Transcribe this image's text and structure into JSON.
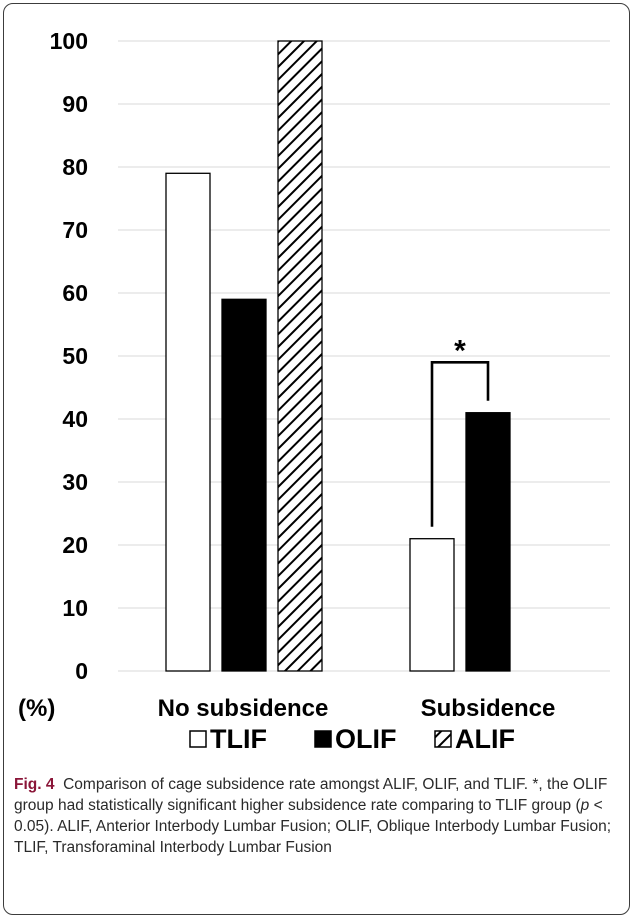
{
  "chart_data": {
    "type": "bar",
    "categories": [
      "No subsidence",
      "Subsidence"
    ],
    "series": [
      {
        "name": "TLIF",
        "values": [
          79,
          21
        ],
        "pattern": "white"
      },
      {
        "name": "OLIF",
        "values": [
          59,
          41
        ],
        "pattern": "black"
      },
      {
        "name": "ALIF",
        "values": [
          100,
          null
        ],
        "pattern": "hatched"
      }
    ],
    "ylim": [
      0,
      100
    ],
    "yticks": [
      0,
      10,
      20,
      30,
      40,
      50,
      60,
      70,
      80,
      90,
      100
    ],
    "ylabel": "(%)",
    "grid": true,
    "legend_position": "bottom",
    "annotations": [
      {
        "text": "*",
        "category": "Subsidence",
        "between": [
          "TLIF",
          "OLIF"
        ],
        "bracket_top": 49
      }
    ]
  },
  "caption": {
    "label": "Fig. 4",
    "text_before_p": "Comparison of cage subsidence rate amongst ALIF, OLIF, and TLIF. *, the OLIF group had statistically significant higher subsidence rate comparing to TLIF group (",
    "p": "p",
    "text_after_p": " < 0.05). ALIF, Anterior Interbody Lumbar Fusion; OLIF, Oblique Interbody Lumbar Fusion; TLIF, Transforaminal Interbody Lumbar Fusion"
  },
  "colors": {
    "grid": "#d9d9d9",
    "bar_stroke": "#000000",
    "fig_label": "#8a1538"
  }
}
